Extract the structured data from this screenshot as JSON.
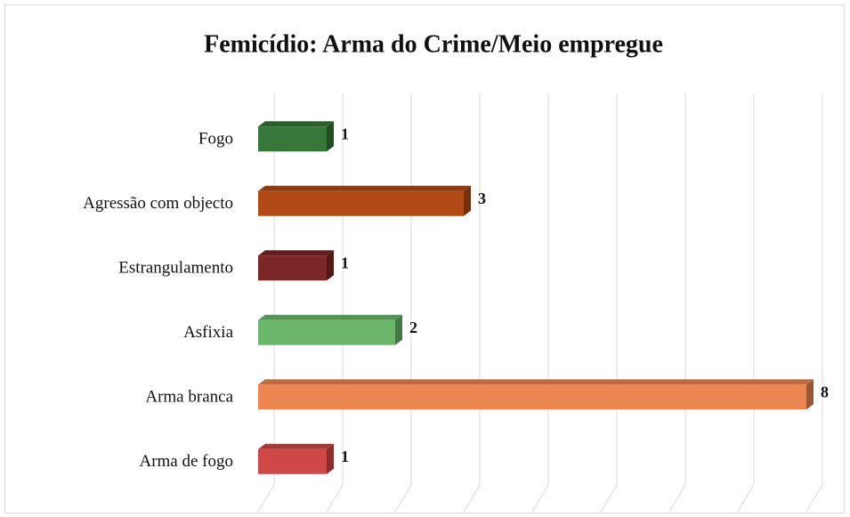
{
  "chart_data": {
    "type": "bar3d",
    "orientation": "horizontal",
    "title": "Femicídio: Arma do Crime/Meio empregue",
    "categories": [
      "Fogo",
      "Agressão com objecto",
      "Estrangulamento",
      "Asfixia",
      "Arma branca",
      "Arma de fogo"
    ],
    "values": [
      1,
      3,
      1,
      2,
      8,
      1
    ],
    "colors": [
      "#38773a",
      "#b14a17",
      "#7c2727",
      "#6bb86d",
      "#ec8651",
      "#cf4747"
    ],
    "xlim": [
      0,
      8
    ],
    "xticks": [
      0,
      1,
      2,
      3,
      4,
      5,
      6,
      7,
      8
    ],
    "grid": true
  }
}
